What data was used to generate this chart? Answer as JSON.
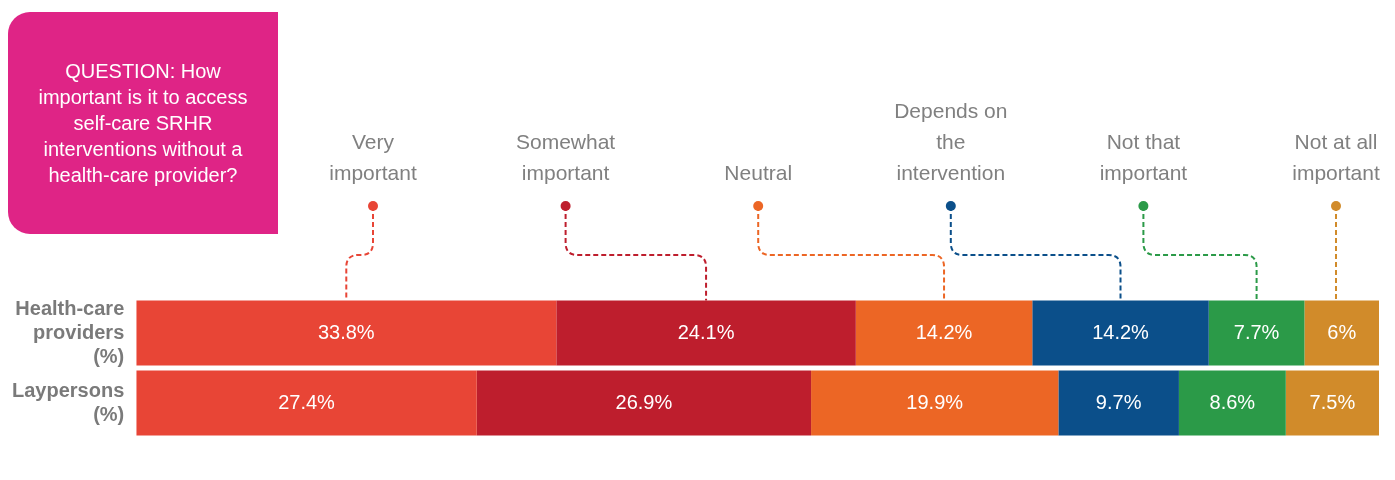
{
  "chart_data": {
    "type": "bar",
    "orientation": "horizontal",
    "stacked": true,
    "title": "QUESTION: How important is it to access self-care SRHR interventions without a health-care provider?",
    "categories": [
      "Health-care providers (%)",
      "Laypersons (%)"
    ],
    "series": [
      {
        "name": "Very important",
        "color": "#e84536",
        "values": [
          33.8,
          27.4
        ],
        "value_labels": [
          "33.8%",
          "27.4%"
        ]
      },
      {
        "name": "Somewhat important",
        "color": "#be1e2d",
        "values": [
          24.1,
          26.9
        ],
        "value_labels": [
          "24.1%",
          "26.9%"
        ]
      },
      {
        "name": "Neutral",
        "color": "#ec6625",
        "values": [
          14.2,
          19.9
        ],
        "value_labels": [
          "14.2%",
          "19.9%"
        ]
      },
      {
        "name": "Depends on the intervention",
        "color": "#0b4f8a",
        "values": [
          14.2,
          9.7
        ],
        "value_labels": [
          "14.2%",
          "9.7%"
        ]
      },
      {
        "name": "Not that important",
        "color": "#2b9a48",
        "values": [
          7.7,
          8.6
        ],
        "value_labels": [
          "7.7%",
          "8.6%"
        ]
      },
      {
        "name": "Not at all important",
        "color": "#d18b2a",
        "values": [
          6,
          7.5
        ],
        "value_labels": [
          "6%",
          "7.5%"
        ]
      }
    ],
    "legend": "top",
    "grid": false,
    "tick_labels": "y"
  }
}
